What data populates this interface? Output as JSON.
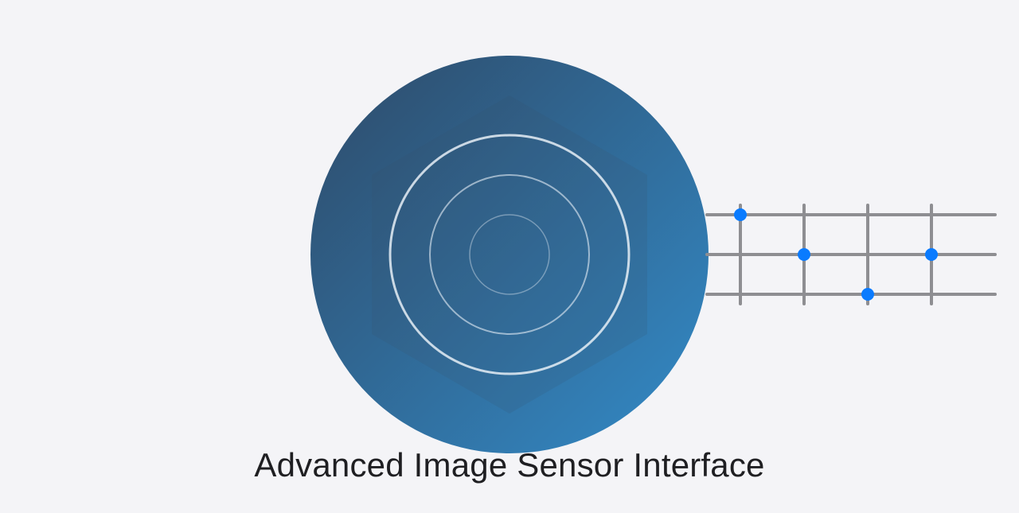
{
  "caption": "Advanced Image Sensor Interface",
  "colors": {
    "background": "#f4f4f7",
    "lens_gradient_start": "#2e4a68",
    "lens_gradient_end": "#338bc8",
    "ring": "#e6eef6",
    "grid_line": "#8e8e92",
    "node": "#0a7bff"
  },
  "grid": {
    "columns": 4,
    "rows": 3,
    "nodes": [
      {
        "col": 1,
        "row": 1
      },
      {
        "col": 2,
        "row": 2
      },
      {
        "col": 3,
        "row": 3
      },
      {
        "col": 4,
        "row": 2
      }
    ]
  }
}
